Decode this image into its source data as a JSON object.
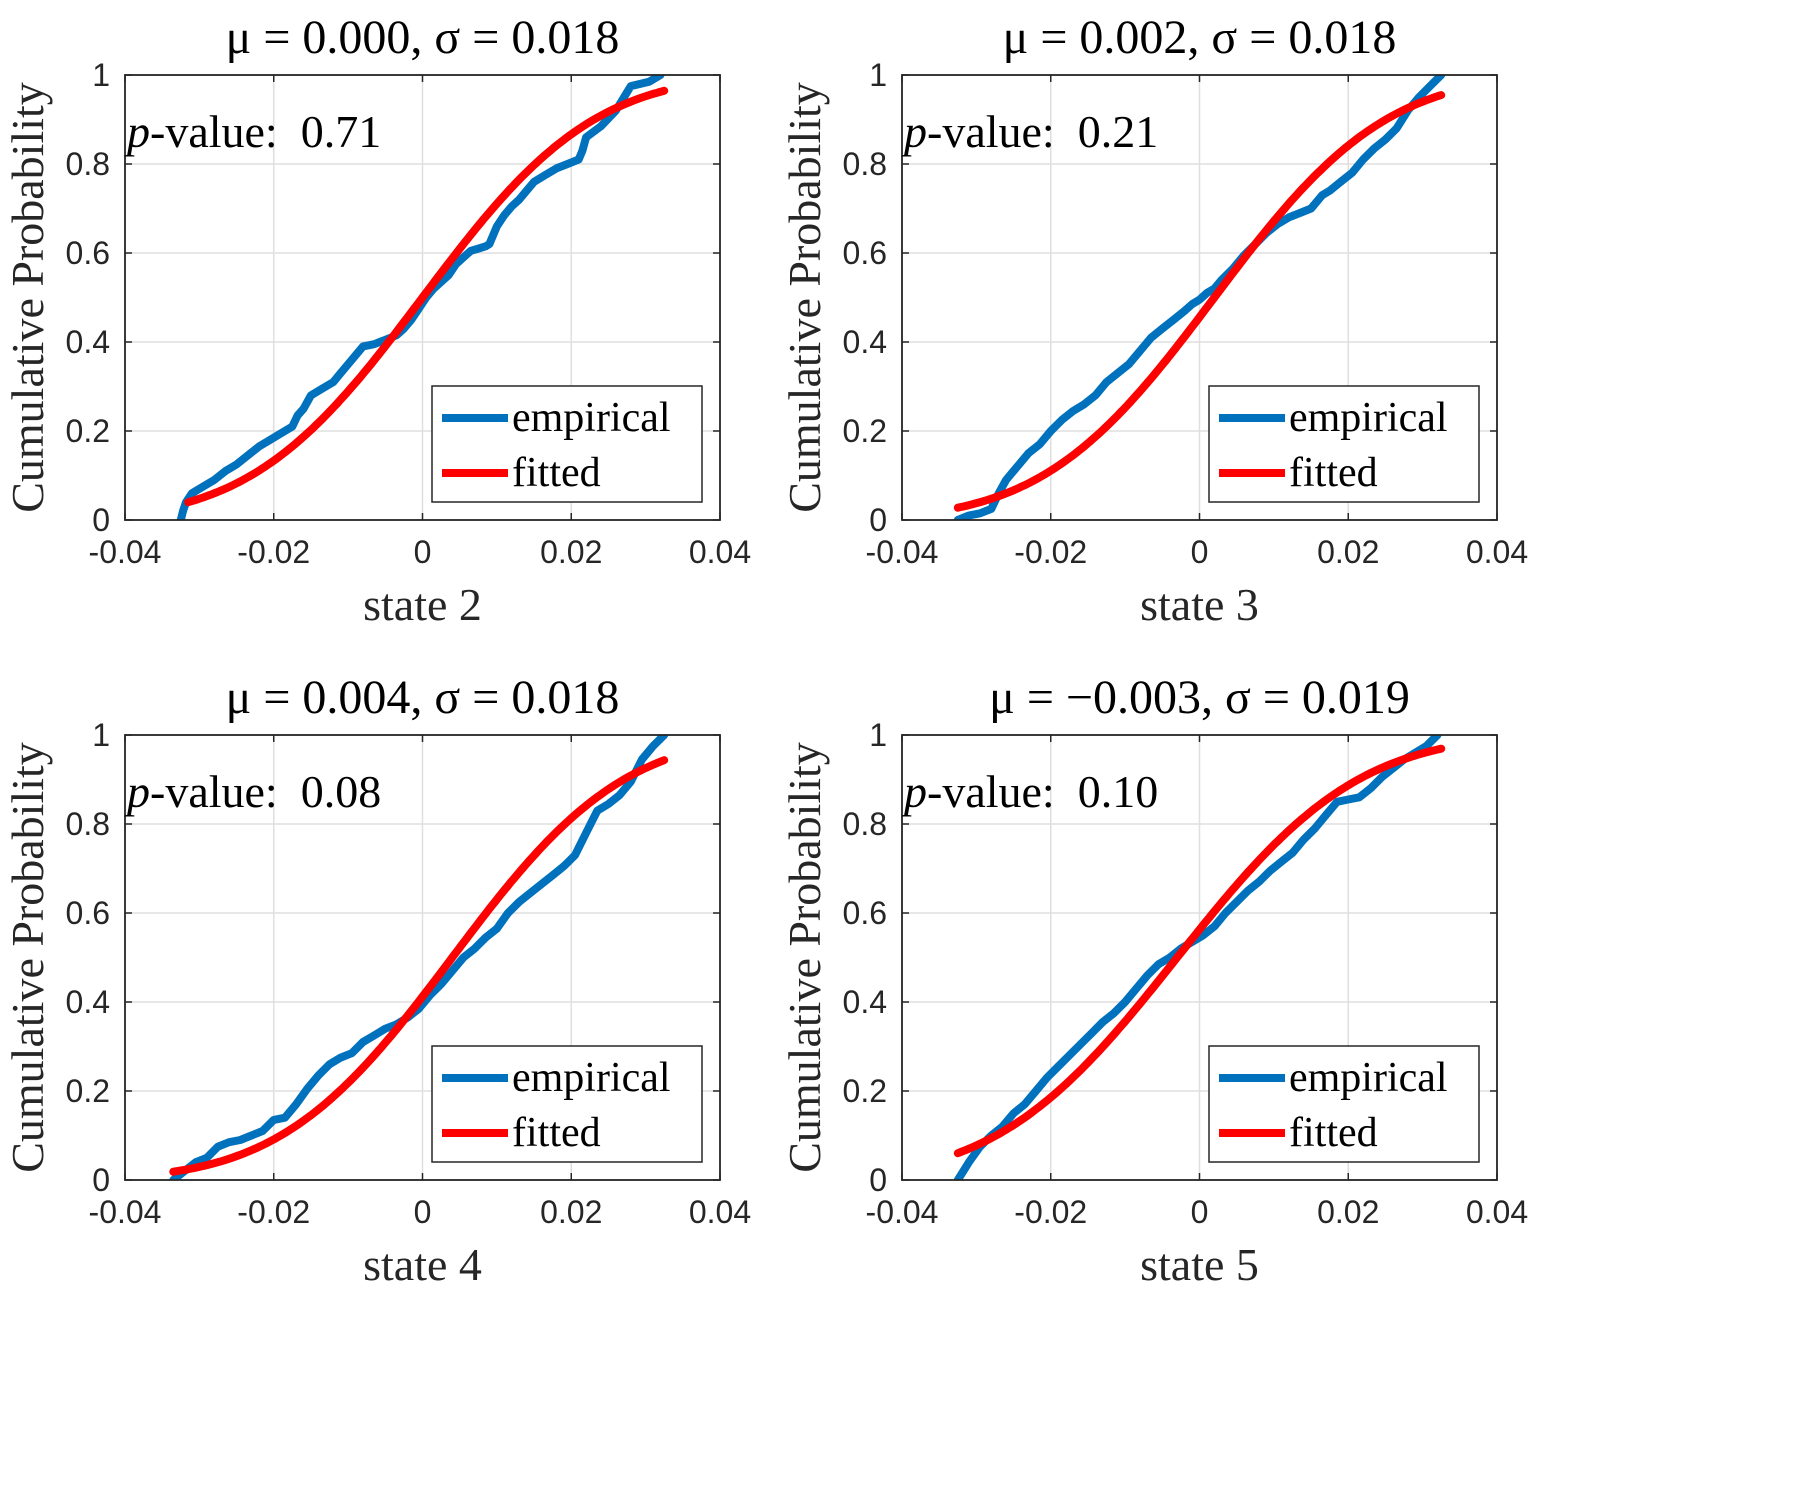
{
  "colors": {
    "empirical": "#0072BD",
    "fitted": "#FF0000",
    "grid": "#DFDFDF",
    "axis": "#262626"
  },
  "chart_data": [
    {
      "type": "line",
      "title": "μ = 0.000, σ = 0.018",
      "mu": "0.000",
      "sigma": "0.018",
      "pvalue_label": "p",
      "pvalue_suffix": "-value:",
      "pvalue": "0.71",
      "xlabel": "state 2",
      "ylabel": "Cumulative Probability",
      "xlim": [
        -0.04,
        0.04
      ],
      "ylim": [
        0,
        1
      ],
      "xticks": [
        -0.04,
        -0.02,
        0,
        0.02,
        0.04
      ],
      "xtick_labels": [
        "-0.04",
        "-0.02",
        "0",
        "0.02",
        "0.04"
      ],
      "yticks": [
        0,
        0.2,
        0.4,
        0.6,
        0.8,
        1
      ],
      "ytick_labels": [
        "0",
        "0.2",
        "0.4",
        "0.6",
        "0.8",
        "1"
      ],
      "grid": true,
      "legend": [
        "empirical",
        "fitted"
      ],
      "legend_position": "bottom-right",
      "series": [
        {
          "name": "empirical",
          "x": [
            -0.0325,
            -0.0322,
            -0.0318,
            -0.031,
            -0.0295,
            -0.028,
            -0.0265,
            -0.025,
            -0.0235,
            -0.022,
            -0.0205,
            -0.019,
            -0.0175,
            -0.0168,
            -0.016,
            -0.015,
            -0.0135,
            -0.012,
            -0.011,
            -0.0095,
            -0.008,
            -0.0065,
            -0.005,
            -0.0035,
            -0.0025,
            -0.0015,
            -0.0005,
            0.0005,
            0.0015,
            0.0025,
            0.0035,
            0.0045,
            0.0055,
            0.0065,
            0.0075,
            0.0085,
            0.009,
            0.01,
            0.011,
            0.012,
            0.013,
            0.014,
            0.015,
            0.0165,
            0.018,
            0.0195,
            0.021,
            0.0215,
            0.022,
            0.024,
            0.026,
            0.028,
            0.0305,
            0.032
          ],
          "y": [
            0.0,
            0.02,
            0.04,
            0.06,
            0.075,
            0.09,
            0.11,
            0.125,
            0.145,
            0.165,
            0.18,
            0.195,
            0.21,
            0.235,
            0.25,
            0.28,
            0.295,
            0.31,
            0.33,
            0.36,
            0.39,
            0.395,
            0.405,
            0.415,
            0.43,
            0.45,
            0.475,
            0.5,
            0.52,
            0.535,
            0.55,
            0.575,
            0.59,
            0.605,
            0.61,
            0.615,
            0.62,
            0.66,
            0.685,
            0.705,
            0.72,
            0.74,
            0.76,
            0.775,
            0.79,
            0.8,
            0.81,
            0.83,
            0.86,
            0.885,
            0.92,
            0.975,
            0.985,
            1.0
          ]
        },
        {
          "name": "fitted",
          "mu": 0.0,
          "sigma": 0.018,
          "x_range": [
            -0.0315,
            0.0325
          ]
        }
      ]
    },
    {
      "type": "line",
      "title": "μ = 0.002, σ = 0.018",
      "mu": "0.002",
      "sigma": "0.018",
      "pvalue_label": "p",
      "pvalue_suffix": "-value:",
      "pvalue": "0.21",
      "xlabel": "state 3",
      "ylabel": "Cumulative Probability",
      "xlim": [
        -0.04,
        0.04
      ],
      "ylim": [
        0,
        1
      ],
      "xticks": [
        -0.04,
        -0.02,
        0,
        0.02,
        0.04
      ],
      "xtick_labels": [
        "-0.04",
        "-0.02",
        "0",
        "0.02",
        "0.04"
      ],
      "yticks": [
        0,
        0.2,
        0.4,
        0.6,
        0.8,
        1
      ],
      "ytick_labels": [
        "0",
        "0.2",
        "0.4",
        "0.6",
        "0.8",
        "1"
      ],
      "grid": true,
      "legend": [
        "empirical",
        "fitted"
      ],
      "legend_position": "bottom-right",
      "series": [
        {
          "name": "empirical",
          "x": [
            -0.0325,
            -0.031,
            -0.0295,
            -0.028,
            -0.027,
            -0.026,
            -0.0245,
            -0.023,
            -0.0215,
            -0.02,
            -0.0185,
            -0.017,
            -0.0155,
            -0.014,
            -0.0125,
            -0.011,
            -0.0095,
            -0.008,
            -0.0065,
            -0.005,
            -0.0035,
            -0.002,
            -0.001,
            0.0,
            0.001,
            0.002,
            0.003,
            0.0045,
            0.006,
            0.0075,
            0.009,
            0.0105,
            0.012,
            0.0135,
            0.015,
            0.0165,
            0.0175,
            0.019,
            0.0205,
            0.022,
            0.0235,
            0.025,
            0.0265,
            0.028,
            0.0295,
            0.031,
            0.0325
          ],
          "y": [
            0.0,
            0.01,
            0.015,
            0.025,
            0.06,
            0.09,
            0.12,
            0.15,
            0.17,
            0.2,
            0.225,
            0.245,
            0.26,
            0.28,
            0.31,
            0.33,
            0.35,
            0.38,
            0.41,
            0.43,
            0.45,
            0.47,
            0.485,
            0.495,
            0.51,
            0.52,
            0.54,
            0.565,
            0.595,
            0.62,
            0.645,
            0.665,
            0.68,
            0.69,
            0.7,
            0.73,
            0.74,
            0.76,
            0.78,
            0.81,
            0.835,
            0.855,
            0.88,
            0.92,
            0.95,
            0.975,
            1.0
          ]
        },
        {
          "name": "fitted",
          "mu": 0.002,
          "sigma": 0.018,
          "x_range": [
            -0.0325,
            0.0325
          ]
        }
      ]
    },
    {
      "type": "line",
      "title": "μ = 0.004, σ = 0.018",
      "mu": "0.004",
      "sigma": "0.018",
      "pvalue_label": "p",
      "pvalue_suffix": "-value:",
      "pvalue": "0.08",
      "xlabel": "state 4",
      "ylabel": "Cumulative Probability",
      "xlim": [
        -0.04,
        0.04
      ],
      "ylim": [
        0,
        1
      ],
      "xticks": [
        -0.04,
        -0.02,
        0,
        0.02,
        0.04
      ],
      "xtick_labels": [
        "-0.04",
        "-0.02",
        "0",
        "0.02",
        "0.04"
      ],
      "yticks": [
        0,
        0.2,
        0.4,
        0.6,
        0.8,
        1
      ],
      "ytick_labels": [
        "0",
        "0.2",
        "0.4",
        "0.6",
        "0.8",
        "1"
      ],
      "grid": true,
      "legend": [
        "empirical",
        "fitted"
      ],
      "legend_position": "bottom-right",
      "series": [
        {
          "name": "empirical",
          "x": [
            -0.0335,
            -0.032,
            -0.0305,
            -0.029,
            -0.0275,
            -0.026,
            -0.0245,
            -0.023,
            -0.0215,
            -0.02,
            -0.0185,
            -0.017,
            -0.0155,
            -0.014,
            -0.0125,
            -0.011,
            -0.0095,
            -0.008,
            -0.0065,
            -0.005,
            -0.0035,
            -0.002,
            -0.0005,
            0.001,
            0.0025,
            0.004,
            0.0055,
            0.007,
            0.0085,
            0.01,
            0.0115,
            0.013,
            0.0145,
            0.016,
            0.0175,
            0.019,
            0.0205,
            0.022,
            0.0235,
            0.025,
            0.0265,
            0.028,
            0.0295,
            0.031,
            0.0325
          ],
          "y": [
            0.0,
            0.02,
            0.04,
            0.05,
            0.075,
            0.085,
            0.09,
            0.1,
            0.11,
            0.135,
            0.14,
            0.17,
            0.205,
            0.235,
            0.26,
            0.275,
            0.285,
            0.31,
            0.325,
            0.34,
            0.35,
            0.365,
            0.385,
            0.415,
            0.44,
            0.47,
            0.5,
            0.52,
            0.545,
            0.565,
            0.6,
            0.625,
            0.645,
            0.665,
            0.685,
            0.705,
            0.73,
            0.78,
            0.83,
            0.845,
            0.865,
            0.895,
            0.945,
            0.975,
            1.0
          ]
        },
        {
          "name": "fitted",
          "mu": 0.004,
          "sigma": 0.018,
          "x_range": [
            -0.0335,
            0.0325
          ]
        }
      ]
    },
    {
      "type": "line",
      "title": "μ = −0.003, σ = 0.019",
      "mu": "−0.003",
      "sigma": "0.019",
      "pvalue_label": "p",
      "pvalue_suffix": "-value:",
      "pvalue": "0.10",
      "xlabel": "state 5",
      "ylabel": "Cumulative Probability",
      "xlim": [
        -0.04,
        0.04
      ],
      "ylim": [
        0,
        1
      ],
      "xticks": [
        -0.04,
        -0.02,
        0,
        0.02,
        0.04
      ],
      "xtick_labels": [
        "-0.04",
        "-0.02",
        "0",
        "0.02",
        "0.04"
      ],
      "yticks": [
        0,
        0.2,
        0.4,
        0.6,
        0.8,
        1
      ],
      "ytick_labels": [
        "0",
        "0.2",
        "0.4",
        "0.6",
        "0.8",
        "1"
      ],
      "grid": true,
      "legend": [
        "empirical",
        "fitted"
      ],
      "legend_position": "bottom-right",
      "series": [
        {
          "name": "empirical",
          "x": [
            -0.0325,
            -0.031,
            -0.0295,
            -0.028,
            -0.0265,
            -0.025,
            -0.0235,
            -0.022,
            -0.0205,
            -0.019,
            -0.0175,
            -0.016,
            -0.0145,
            -0.013,
            -0.0115,
            -0.01,
            -0.0085,
            -0.007,
            -0.0055,
            -0.004,
            -0.0025,
            -0.001,
            0.0005,
            0.002,
            0.0035,
            0.005,
            0.0065,
            0.008,
            0.0095,
            0.011,
            0.0125,
            0.014,
            0.0155,
            0.017,
            0.0185,
            0.02,
            0.0215,
            0.023,
            0.0245,
            0.026,
            0.0275,
            0.029,
            0.0305,
            0.032
          ],
          "y": [
            0.0,
            0.04,
            0.075,
            0.1,
            0.12,
            0.15,
            0.17,
            0.2,
            0.23,
            0.255,
            0.28,
            0.305,
            0.33,
            0.355,
            0.375,
            0.4,
            0.43,
            0.46,
            0.485,
            0.5,
            0.52,
            0.535,
            0.55,
            0.57,
            0.6,
            0.625,
            0.65,
            0.67,
            0.695,
            0.715,
            0.735,
            0.765,
            0.79,
            0.82,
            0.85,
            0.855,
            0.86,
            0.88,
            0.905,
            0.925,
            0.945,
            0.96,
            0.975,
            1.0
          ]
        },
        {
          "name": "fitted",
          "mu": -0.003,
          "sigma": 0.019,
          "x_range": [
            -0.0325,
            0.0325
          ]
        }
      ]
    }
  ]
}
